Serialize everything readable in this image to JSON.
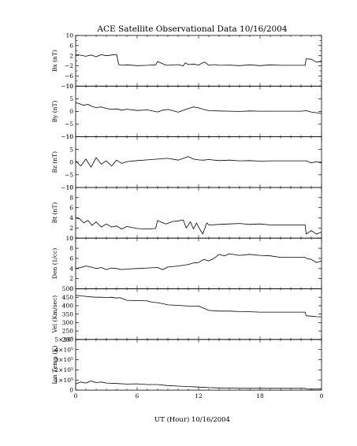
{
  "title": "ACE Satellite Observational Data   10/16/2004",
  "xlabel": "UT (Hour)   10/16/2004",
  "x_tick_labels": [
    "0",
    "6",
    "12",
    "18",
    "0"
  ],
  "chart_data": [
    {
      "type": "line",
      "ylabel": "Bx (nT)",
      "ylim": [
        -10,
        10
      ],
      "y_tick_labels": [
        "10",
        "6",
        "2",
        "−2",
        "−6",
        "−10"
      ],
      "x_range": [
        0,
        24
      ],
      "y_minor_ticks": [
        8,
        4,
        0,
        -4,
        -8
      ],
      "series": [
        {
          "x": [
            0,
            0.5,
            1,
            1.5,
            2,
            2.5,
            3,
            3.5,
            4,
            4.2,
            4.6,
            5,
            6,
            7,
            7.8,
            8.0,
            8.3,
            8.8,
            9,
            10,
            10.5,
            10.7,
            11,
            11.5,
            12,
            12.3,
            12.6,
            13,
            13.5,
            14,
            15,
            16,
            17,
            18,
            19,
            20,
            21,
            22,
            22.4,
            22.5,
            23,
            23.5,
            24
          ],
          "y": [
            2.5,
            2.2,
            1.8,
            2.3,
            1.6,
            2.4,
            2.0,
            2.3,
            2.5,
            -1.5,
            -1.8,
            -1.6,
            -1.9,
            -1.8,
            -1.6,
            -0.3,
            -0.8,
            -1.7,
            -1.8,
            -1.5,
            -2.0,
            -0.8,
            -1.5,
            -1.3,
            -1.7,
            -1.0,
            -0.5,
            -1.8,
            -1.5,
            -1.8,
            -1.7,
            -1.9,
            -1.6,
            -1.9,
            -1.6,
            -1.8,
            -1.8,
            -1.8,
            -1.8,
            0.8,
            0.6,
            -0.5,
            -0.3
          ]
        }
      ]
    },
    {
      "type": "line",
      "ylabel": "By (nT)",
      "ylim": [
        -10,
        10
      ],
      "y_tick_labels": [
        "10",
        "5",
        "0",
        "−5",
        "−10"
      ],
      "x_range": [
        0,
        24
      ],
      "series": [
        {
          "x": [
            0,
            0.4,
            0.8,
            1.2,
            1.6,
            2,
            2.5,
            3,
            3.5,
            4,
            4.5,
            5,
            6,
            7,
            8,
            8.5,
            9,
            9.5,
            10,
            11,
            11.5,
            12,
            12.5,
            13,
            14,
            15,
            16,
            17,
            18,
            19,
            20,
            21,
            22,
            22.5,
            23,
            23.5,
            24
          ],
          "y": [
            3.5,
            3.0,
            2.4,
            2.8,
            2.0,
            1.5,
            1.8,
            1.2,
            0.8,
            1.0,
            0.5,
            0.9,
            0.4,
            0.6,
            -0.2,
            0.5,
            0.8,
            0.3,
            -0.3,
            1.2,
            1.8,
            1.4,
            0.8,
            0.3,
            0.2,
            0.1,
            0.0,
            0.2,
            0.1,
            0.1,
            0.1,
            0.1,
            0.1,
            0.3,
            -0.2,
            -0.5,
            -0.8
          ]
        }
      ]
    },
    {
      "type": "line",
      "ylabel": "Bz (nT)",
      "ylim": [
        -10,
        10
      ],
      "y_tick_labels": [
        "10",
        "5",
        "0",
        "−5",
        "−10"
      ],
      "x_range": [
        0,
        24
      ],
      "series": [
        {
          "x": [
            0,
            0.5,
            1,
            1.5,
            2,
            2.5,
            3,
            3.5,
            4,
            4.5,
            5,
            6,
            7,
            8,
            9,
            10,
            11,
            11.5,
            12,
            12.5,
            13,
            14,
            15,
            16,
            17,
            18,
            19,
            20,
            21,
            22,
            22.5,
            23,
            23.5,
            24
          ],
          "y": [
            0.5,
            -1.5,
            1.2,
            -2.0,
            1.8,
            -0.8,
            0.5,
            -1.5,
            0.8,
            -0.5,
            0.2,
            0.6,
            0.9,
            1.2,
            1.5,
            0.8,
            2.2,
            1.2,
            0.9,
            0.8,
            1.0,
            0.6,
            0.8,
            0.5,
            0.6,
            0.4,
            0.5,
            0.5,
            0.5,
            0.5,
            0.5,
            -0.3,
            0.2,
            -0.4
          ]
        }
      ]
    },
    {
      "type": "line",
      "ylabel": "Bt (nT)",
      "ylim": [
        0,
        10
      ],
      "y_tick_labels": [
        "10",
        "8",
        "6",
        "4",
        "2",
        "0"
      ],
      "x_range": [
        0,
        24
      ],
      "series": [
        {
          "x": [
            0,
            0.4,
            0.8,
            1.2,
            1.6,
            2,
            2.5,
            3,
            3.5,
            4,
            4.5,
            5,
            6,
            7,
            7.8,
            8.0,
            8.3,
            8.8,
            9.5,
            10,
            10.5,
            10.8,
            11.2,
            11.5,
            11.8,
            12,
            12.4,
            12.8,
            13,
            14,
            15,
            16,
            17,
            18,
            19,
            20,
            21,
            22,
            22.4,
            22.5,
            23,
            23.5,
            24
          ],
          "y": [
            4.0,
            3.8,
            3.0,
            3.5,
            2.5,
            3.2,
            2.2,
            2.8,
            2.2,
            2.4,
            1.8,
            2.3,
            1.9,
            1.8,
            1.9,
            3.5,
            3.2,
            2.8,
            3.3,
            3.4,
            3.6,
            2.0,
            3.2,
            1.8,
            3.0,
            2.2,
            0.8,
            3.0,
            2.6,
            2.7,
            2.8,
            2.9,
            2.7,
            2.8,
            2.6,
            2.6,
            2.6,
            2.6,
            2.6,
            0.8,
            1.5,
            0.8,
            1.2
          ]
        }
      ]
    },
    {
      "type": "line",
      "ylabel": "Den (1/cc)",
      "ylim": [
        0,
        10
      ],
      "y_tick_labels": [
        "10",
        "8",
        "6",
        "4",
        "2",
        "0"
      ],
      "x_range": [
        0,
        24
      ],
      "series": [
        {
          "x": [
            0,
            0.5,
            1,
            1.5,
            2,
            2.5,
            3,
            3.5,
            4,
            4.5,
            5,
            6,
            7,
            8,
            8.5,
            9,
            10,
            11,
            11.5,
            12,
            12.5,
            13,
            13.5,
            14,
            14.5,
            15,
            16,
            17,
            18,
            19,
            20,
            21,
            22,
            22.4,
            22.5,
            23,
            23.5,
            24
          ],
          "y": [
            4.0,
            4.2,
            4.5,
            4.3,
            4.0,
            4.2,
            3.8,
            4.1,
            4.0,
            3.8,
            3.9,
            4.0,
            4.1,
            4.2,
            3.8,
            4.3,
            4.5,
            4.8,
            5.1,
            5.2,
            5.8,
            5.5,
            6.0,
            6.8,
            6.5,
            6.9,
            6.6,
            6.8,
            6.6,
            6.5,
            6.2,
            6.2,
            6.2,
            6.2,
            6.0,
            5.8,
            5.2,
            5.5
          ]
        }
      ]
    },
    {
      "type": "line",
      "ylabel": "Vel (Km/sec)",
      "ylim": [
        200,
        500
      ],
      "y_tick_labels": [
        "500",
        "450",
        "400",
        "350",
        "300",
        "250",
        "200"
      ],
      "x_range": [
        0,
        24
      ],
      "series": [
        {
          "x": [
            0,
            0.5,
            1,
            1.5,
            2,
            2.5,
            3,
            3.5,
            4,
            4.3,
            5,
            6,
            7,
            7.5,
            8,
            8.5,
            9,
            10,
            11,
            12,
            12.5,
            13,
            14,
            15,
            16,
            17,
            18,
            19,
            20,
            21,
            22,
            22.4,
            22.5,
            23,
            23.5,
            24
          ],
          "y": [
            462,
            458,
            455,
            452,
            450,
            450,
            448,
            450,
            445,
            448,
            432,
            430,
            428,
            420,
            418,
            412,
            405,
            402,
            398,
            398,
            385,
            372,
            368,
            368,
            365,
            364,
            362,
            362,
            362,
            362,
            362,
            362,
            340,
            338,
            335,
            334
          ]
        }
      ]
    },
    {
      "type": "line",
      "ylabel": "Ion Temp (K)",
      "ylim": [
        0,
        500000
      ],
      "y_tick_labels": [
        "5×10⁵",
        "4×10⁵",
        "3×10⁵",
        "2×10⁵",
        "1×10⁵",
        "0"
      ],
      "x_range": [
        0,
        24
      ],
      "series": [
        {
          "x": [
            0,
            0.5,
            1,
            1.5,
            2,
            2.5,
            3,
            4,
            5,
            6,
            7,
            8,
            9,
            10,
            11,
            12,
            13,
            14,
            15,
            16,
            17,
            18,
            19,
            20,
            21,
            22,
            22.4,
            22.5,
            23,
            24
          ],
          "y": [
            60000,
            80000,
            70000,
            90000,
            75000,
            80000,
            70000,
            65000,
            60000,
            62000,
            55000,
            55000,
            45000,
            40000,
            35000,
            30000,
            25000,
            22000,
            20000,
            18000,
            18000,
            18000,
            18000,
            18000,
            18000,
            18000,
            18000,
            12000,
            10000,
            12000
          ]
        }
      ]
    }
  ]
}
